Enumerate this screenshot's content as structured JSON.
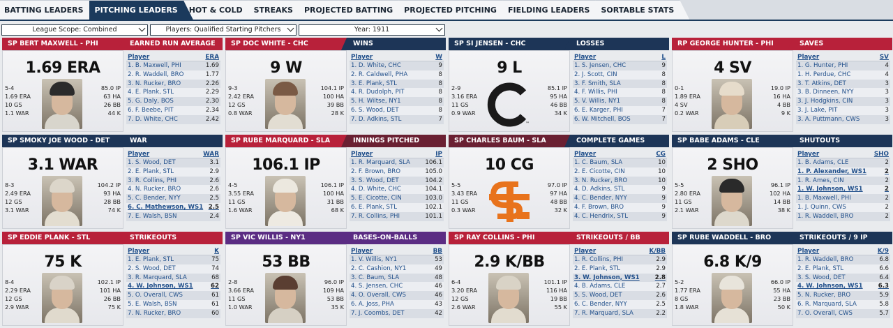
{
  "tabs": [
    {
      "label": "BATTING LEADERS",
      "active": false
    },
    {
      "label": "PITCHING LEADERS",
      "active": true
    },
    {
      "label": "HOT & COLD",
      "active": false
    },
    {
      "label": "STREAKS",
      "active": false
    },
    {
      "label": "PROJECTED BATTING",
      "active": false
    },
    {
      "label": "PROJECTED PITCHING",
      "active": false
    },
    {
      "label": "FIELDING LEADERS",
      "active": false
    },
    {
      "label": "SORTABLE STATS",
      "active": false
    }
  ],
  "filters": {
    "scope": "League Scope: Combined",
    "players": "Players: Qualified Starting Pitchers",
    "year": "Year: 1911"
  },
  "panels": [
    {
      "player": "SP BERT MAXWELL - PHI",
      "stat": "EARNED RUN AVERAGE",
      "big": "1.69 ERA",
      "left": [
        "5-4",
        "1.69 ERA",
        "10 GS",
        "1.1 WAR"
      ],
      "right": [
        "85.0 IP",
        "63 HA",
        "26 BB",
        "44 K"
      ],
      "col": "ERA",
      "photo": {
        "cap": "#2b2b2b",
        "body": "#d8d5cc"
      },
      "rows": [
        [
          "1. B. Maxwell, PHI",
          "1.69"
        ],
        [
          "2. R. Waddell, BRO",
          "1.77"
        ],
        [
          "3. N. Rucker, BRO",
          "2.26"
        ],
        [
          "4. E. Plank, STL",
          "2.29"
        ],
        [
          "5. G. Daly, BOS",
          "2.30"
        ],
        [
          "6. F. Beebe, PIT",
          "2.34"
        ],
        [
          "7. D. White, CHC",
          "2.42"
        ]
      ]
    },
    {
      "player": "SP DOC WHITE - CHC",
      "stat": "WINS",
      "big": "9 W",
      "left": [
        "9-3",
        "2.42 ERA",
        "12 GS",
        "0.8 WAR"
      ],
      "right": [
        "104.1 IP",
        "100 HA",
        "39 BB",
        "28 K"
      ],
      "col": "W",
      "photo": {
        "cap": "#7a5a45",
        "body": "#e2ddd2"
      },
      "rows": [
        [
          "1. D. White, CHC",
          "9"
        ],
        [
          "2. R. Caldwell, PHA",
          "8"
        ],
        [
          "3. E. Plank, STL",
          "8"
        ],
        [
          "4. R. Dudolph, PIT",
          "8"
        ],
        [
          "5. H. Wiltse, NY1",
          "8"
        ],
        [
          "6. S. Wood, DET",
          "8"
        ],
        [
          "7. D. Adkins, STL",
          "7"
        ]
      ]
    },
    {
      "player": "SP SI JENSEN - CHC",
      "stat": "LOSSES",
      "big": "9 L",
      "left": [
        "2-9",
        "3.16 ERA",
        "11 GS",
        "0.9 WAR"
      ],
      "right": [
        "85.1 IP",
        "95 HA",
        "46 BB",
        "34 K"
      ],
      "col": "L",
      "logo": "cubs",
      "rows": [
        [
          "1. S. Jensen, CHC",
          "9"
        ],
        [
          "2. J. Scott, CIN",
          "8"
        ],
        [
          "3. F. Smith, SLA",
          "8"
        ],
        [
          "4. F. Willis, PHI",
          "8"
        ],
        [
          "5. V. Willis, NY1",
          "8"
        ],
        [
          "6. E. Karger, PHI",
          "7"
        ],
        [
          "6. W. Mitchell, BOS",
          "7"
        ]
      ]
    },
    {
      "player": "RP GEORGE HUNTER - PHI",
      "stat": "SAVES",
      "big": "4 SV",
      "left": [
        "0-1",
        "1.89 ERA",
        "4 SV",
        "0.2 WAR"
      ],
      "right": [
        "19.0 IP",
        "16 HA",
        "4 BB",
        "9 K"
      ],
      "col": "SV",
      "photo": {
        "cap": "#e6dccb",
        "body": "#d8cdb8"
      },
      "rows": [
        [
          "1. G. Hunter, PHI",
          "4"
        ],
        [
          "1. H. Perdue, CHC",
          "4"
        ],
        [
          "3. T. Atkins, DET",
          "3"
        ],
        [
          "3. B. Dinneen, NYY",
          "3"
        ],
        [
          "3. J. Hodgkins, CIN",
          "3"
        ],
        [
          "3. J. Lake, PIT",
          "3"
        ],
        [
          "3. A. Puttmann, CWS",
          "3"
        ]
      ]
    },
    {
      "player": "SP SMOKY JOE WOOD - DET",
      "stat": "WAR",
      "big": "3.1 WAR",
      "left": [
        "8-3",
        "2.49 ERA",
        "12 GS",
        "3.1 WAR"
      ],
      "right": [
        "104.2 IP",
        "93 HA",
        "28 BB",
        "74 K"
      ],
      "col": "WAR",
      "photo": {
        "cap": "#dcd6ca",
        "body": "#e3ddd0"
      },
      "rows": [
        [
          "1. S. Wood, DET",
          "3.1"
        ],
        [
          "2. E. Plank, STL",
          "2.9"
        ],
        [
          "3. R. Collins, PHI",
          "2.6"
        ],
        [
          "4. N. Rucker, BRO",
          "2.6"
        ],
        [
          "5. C. Bender, NYY",
          "2.5"
        ],
        [
          "6. C. Mathewson, WS1",
          "2.5",
          true
        ],
        [
          "7. E. Walsh, BSN",
          "2.4"
        ]
      ]
    },
    {
      "player": "SP RUBE MARQUARD - SLA",
      "stat": "INNINGS PITCHED",
      "big": "106.1 IP",
      "left": [
        "4-5",
        "3.55 ERA",
        "11 GS",
        "1.6 WAR"
      ],
      "right": [
        "106.1 IP",
        "100 HA",
        "31 BB",
        "68 K"
      ],
      "col": "IP",
      "photo": {
        "cap": "#ece8df",
        "body": "#eeeae2"
      },
      "rows": [
        [
          "1. R. Marquard, SLA",
          "106.1"
        ],
        [
          "2. F. Brown, BRO",
          "105.0"
        ],
        [
          "3. S. Wood, DET",
          "104.2"
        ],
        [
          "4. D. White, CHC",
          "104.1"
        ],
        [
          "5. E. Cicotte, CIN",
          "103.0"
        ],
        [
          "6. E. Plank, STL",
          "102.1"
        ],
        [
          "7. R. Collins, PHI",
          "101.1"
        ]
      ]
    },
    {
      "player": "SP CHARLES BAUM - SLA",
      "stat": "COMPLETE GAMES",
      "big": "10 CG",
      "left": [
        "5-5",
        "3.43 ERA",
        "11 GS",
        "0.3 WAR"
      ],
      "right": [
        "97.0 IP",
        "97 HA",
        "48 BB",
        "32 K"
      ],
      "col": "CG",
      "logo": "stl",
      "rows": [
        [
          "1. C. Baum, SLA",
          "10"
        ],
        [
          "2. E. Cicotte, CIN",
          "10"
        ],
        [
          "3. N. Rucker, BRO",
          "10"
        ],
        [
          "4. D. Adkins, STL",
          "9"
        ],
        [
          "4. C. Bender, NYY",
          "9"
        ],
        [
          "4. F. Brown, BRO",
          "9"
        ],
        [
          "4. C. Hendrix, STL",
          "9"
        ]
      ]
    },
    {
      "player": "SP BABE ADAMS - CLE",
      "stat": "SHUTOUTS",
      "big": "2 SHO",
      "left": [
        "5-5",
        "2.80 ERA",
        "11 GS",
        "2.1 WAR"
      ],
      "right": [
        "96.1 IP",
        "102 HA",
        "14 BB",
        "38 K"
      ],
      "col": "SHO",
      "photo": {
        "cap": "#2a2a2a",
        "body": "#ddd8cc"
      },
      "rows": [
        [
          "1. B. Adams, CLE",
          "2"
        ],
        [
          "1. P. Alexander, WS1",
          "2",
          true
        ],
        [
          "1. R. Ames, CIN",
          "2"
        ],
        [
          "1. W. Johnson, WS1",
          "2",
          true
        ],
        [
          "1. B. Maxwell, PHI",
          "2"
        ],
        [
          "1. J. Quinn, CWS",
          "2"
        ],
        [
          "1. R. Waddell, BRO",
          "2"
        ]
      ]
    },
    {
      "player": "SP EDDIE PLANK - STL",
      "stat": "STRIKEOUTS",
      "big": "75 K",
      "left": [
        "8-4",
        "2.29 ERA",
        "12 GS",
        "2.9 WAR"
      ],
      "right": [
        "102.1 IP",
        "101 HA",
        "26 BB",
        "75 K"
      ],
      "col": "K",
      "photo": {
        "cap": "#d9d3c8",
        "body": "#e0dacd"
      },
      "rows": [
        [
          "1. E. Plank, STL",
          "75"
        ],
        [
          "2. S. Wood, DET",
          "74"
        ],
        [
          "3. R. Marquard, SLA",
          "68"
        ],
        [
          "4. W. Johnson, WS1",
          "62",
          true
        ],
        [
          "5. O. Overall, CWS",
          "61"
        ],
        [
          "5. E. Walsh, BSN",
          "61"
        ],
        [
          "7. N. Rucker, BRO",
          "60"
        ]
      ]
    },
    {
      "player": "SP VIC WILLIS - NY1",
      "stat": "BASES-ON-BALLS",
      "big": "53 BB",
      "left": [
        "2-8",
        "3.66 ERA",
        "11 GS",
        "1.0 WAR"
      ],
      "right": [
        "96.0 IP",
        "109 HA",
        "53 BB",
        "35 K"
      ],
      "col": "BB",
      "photo": {
        "cap": "#5a3e32",
        "body": "#d6d0c4"
      },
      "rows": [
        [
          "1. V. Willis, NY1",
          "53"
        ],
        [
          "2. C. Cashion, NY1",
          "49"
        ],
        [
          "3. C. Baum, SLA",
          "48"
        ],
        [
          "4. S. Jensen, CHC",
          "46"
        ],
        [
          "4. O. Overall, CWS",
          "46"
        ],
        [
          "6. A. Joss, PHA",
          "43"
        ],
        [
          "7. J. Coombs, DET",
          "42"
        ]
      ]
    },
    {
      "player": "SP RAY COLLINS - PHI",
      "stat": "STRIKEOUTS / BB",
      "big": "2.9 K/BB",
      "left": [
        "6-4",
        "3.20 ERA",
        "12 GS",
        "2.6 WAR"
      ],
      "right": [
        "101.1 IP",
        "116 HA",
        "19 BB",
        "55 K"
      ],
      "col": "K/BB",
      "photo": {
        "cap": "#d9d3c6",
        "body": "#e2dccf"
      },
      "rows": [
        [
          "1. R. Collins, PHI",
          "2.9"
        ],
        [
          "2. E. Plank, STL",
          "2.9"
        ],
        [
          "3. W. Johnson, WS1",
          "2.8",
          true
        ],
        [
          "4. B. Adams, CLE",
          "2.7"
        ],
        [
          "5. S. Wood, DET",
          "2.6"
        ],
        [
          "6. C. Bender, NYY",
          "2.5"
        ],
        [
          "7. R. Marquard, SLA",
          "2.2"
        ]
      ]
    },
    {
      "player": "SP RUBE WADDELL - BRO",
      "stat": "STRIKEOUTS / 9 IP",
      "big": "6.8 K/9",
      "left": [
        "5-2",
        "1.77 ERA",
        "8 GS",
        "1.8 WAR"
      ],
      "right": [
        "66.0 IP",
        "55 HA",
        "23 BB",
        "50 K"
      ],
      "col": "K/9",
      "photo": {
        "cap": "#e8e4db",
        "body": "#e6e1d6"
      },
      "rows": [
        [
          "1. R. Waddell, BRO",
          "6.8"
        ],
        [
          "2. E. Plank, STL",
          "6.6"
        ],
        [
          "3. S. Wood, DET",
          "6.4"
        ],
        [
          "4. W. Johnson, WS1",
          "6.3",
          true
        ],
        [
          "5. N. Rucker, BRO",
          "5.9"
        ],
        [
          "6. R. Marquard, SLA",
          "5.8"
        ],
        [
          "7. O. Overall, CWS",
          "5.7"
        ]
      ]
    }
  ],
  "row_header": "Player",
  "colors": {
    "red": "#b8213a",
    "navy": "#1d3557",
    "maroon": "#6a2032",
    "purple": "#5b2c83"
  }
}
